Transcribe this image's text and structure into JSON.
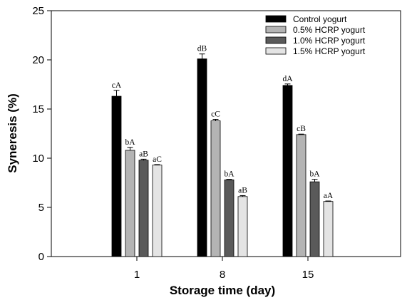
{
  "chart_data": {
    "type": "bar",
    "title": "",
    "xlabel": "Storage time (day)",
    "ylabel": "Syneresis (%)",
    "ylim": [
      0,
      25
    ],
    "yticks": [
      0,
      5,
      10,
      15,
      20,
      25
    ],
    "categories": [
      "1",
      "8",
      "15"
    ],
    "legend_position": "top-right",
    "grid": false,
    "series": [
      {
        "name": "Control yogurt",
        "color": "#000000",
        "values": [
          16.3,
          20.1,
          17.4
        ],
        "errors": [
          0.6,
          0.5,
          0.15
        ],
        "labels": [
          "cA",
          "dB",
          "dA"
        ]
      },
      {
        "name": "0.5% HCRP yogurt",
        "color": "#b4b4b4",
        "values": [
          10.8,
          13.8,
          12.4
        ],
        "errors": [
          0.3,
          0.15,
          0.05
        ],
        "labels": [
          "bA",
          "cC",
          "cB"
        ]
      },
      {
        "name": "1.0% HCRP yogurt",
        "color": "#5a5a5a",
        "values": [
          9.8,
          7.8,
          7.6
        ],
        "errors": [
          0.1,
          0.05,
          0.25
        ],
        "labels": [
          "aB",
          "bA",
          "bA"
        ]
      },
      {
        "name": "1.5% HCRP yogurt",
        "color": "#e4e4e4",
        "values": [
          9.3,
          6.1,
          5.6
        ],
        "errors": [
          0.05,
          0.1,
          0.05
        ],
        "labels": [
          "aC",
          "aB",
          "aA"
        ]
      }
    ]
  }
}
